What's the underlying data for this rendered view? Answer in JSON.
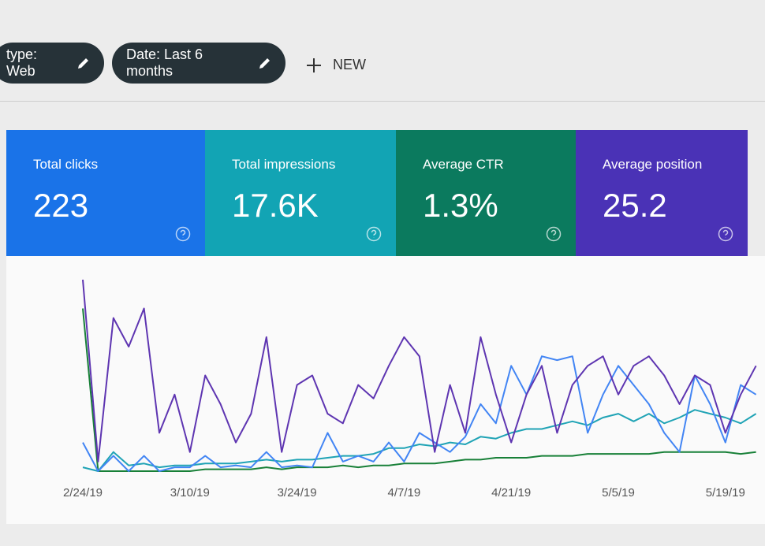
{
  "filters": [
    {
      "label": "type: Web"
    },
    {
      "label": "Date: Last 6 months"
    }
  ],
  "new_button": "NEW",
  "metrics": [
    {
      "label": "Total clicks",
      "value": "223",
      "color": "#1a73e8"
    },
    {
      "label": "Total impressions",
      "value": "17.6K",
      "color": "#12a4b4"
    },
    {
      "label": "Average CTR",
      "value": "1.3%",
      "color": "#0b7a5e"
    },
    {
      "label": "Average position",
      "value": "25.2",
      "color": "#4a32b6"
    }
  ],
  "chart_data": {
    "type": "line",
    "ylim": [
      0,
      100
    ],
    "x_labels": [
      "2/24/19",
      "3/10/19",
      "3/24/19",
      "4/7/19",
      "4/21/19",
      "5/5/19",
      "5/19/19"
    ],
    "series": [
      {
        "color": "#5e35b1",
        "values": [
          100,
          5,
          80,
          65,
          85,
          20,
          40,
          10,
          50,
          35,
          15,
          30,
          70,
          10,
          45,
          50,
          30,
          25,
          45,
          38,
          55,
          70,
          60,
          10,
          45,
          20,
          70,
          40,
          15,
          40,
          55,
          20,
          45,
          55,
          60,
          40,
          55,
          60,
          50,
          35,
          50,
          45,
          20,
          40,
          55
        ]
      },
      {
        "color": "#4285f4",
        "values": [
          15,
          0,
          8,
          0,
          8,
          0,
          2,
          2,
          8,
          2,
          3,
          2,
          10,
          2,
          3,
          2,
          20,
          5,
          8,
          5,
          15,
          5,
          20,
          15,
          10,
          18,
          35,
          25,
          55,
          40,
          60,
          58,
          60,
          20,
          40,
          55,
          45,
          35,
          20,
          10,
          50,
          35,
          15,
          45,
          40
        ]
      },
      {
        "color": "#1fa3b5",
        "values": [
          2,
          0,
          10,
          3,
          4,
          2,
          3,
          3,
          4,
          4,
          4,
          5,
          6,
          5,
          6,
          6,
          7,
          8,
          8,
          9,
          12,
          12,
          14,
          13,
          15,
          14,
          18,
          17,
          20,
          22,
          22,
          24,
          26,
          24,
          28,
          30,
          26,
          30,
          25,
          28,
          32,
          30,
          28,
          25,
          30
        ]
      },
      {
        "color": "#188038",
        "values": [
          85,
          0,
          0,
          0,
          0,
          0,
          0,
          0,
          1,
          1,
          1,
          1,
          2,
          1,
          2,
          2,
          2,
          3,
          2,
          3,
          3,
          4,
          4,
          4,
          5,
          6,
          6,
          7,
          7,
          7,
          8,
          8,
          8,
          9,
          9,
          9,
          9,
          9,
          10,
          10,
          10,
          10,
          10,
          9,
          10
        ]
      }
    ]
  }
}
